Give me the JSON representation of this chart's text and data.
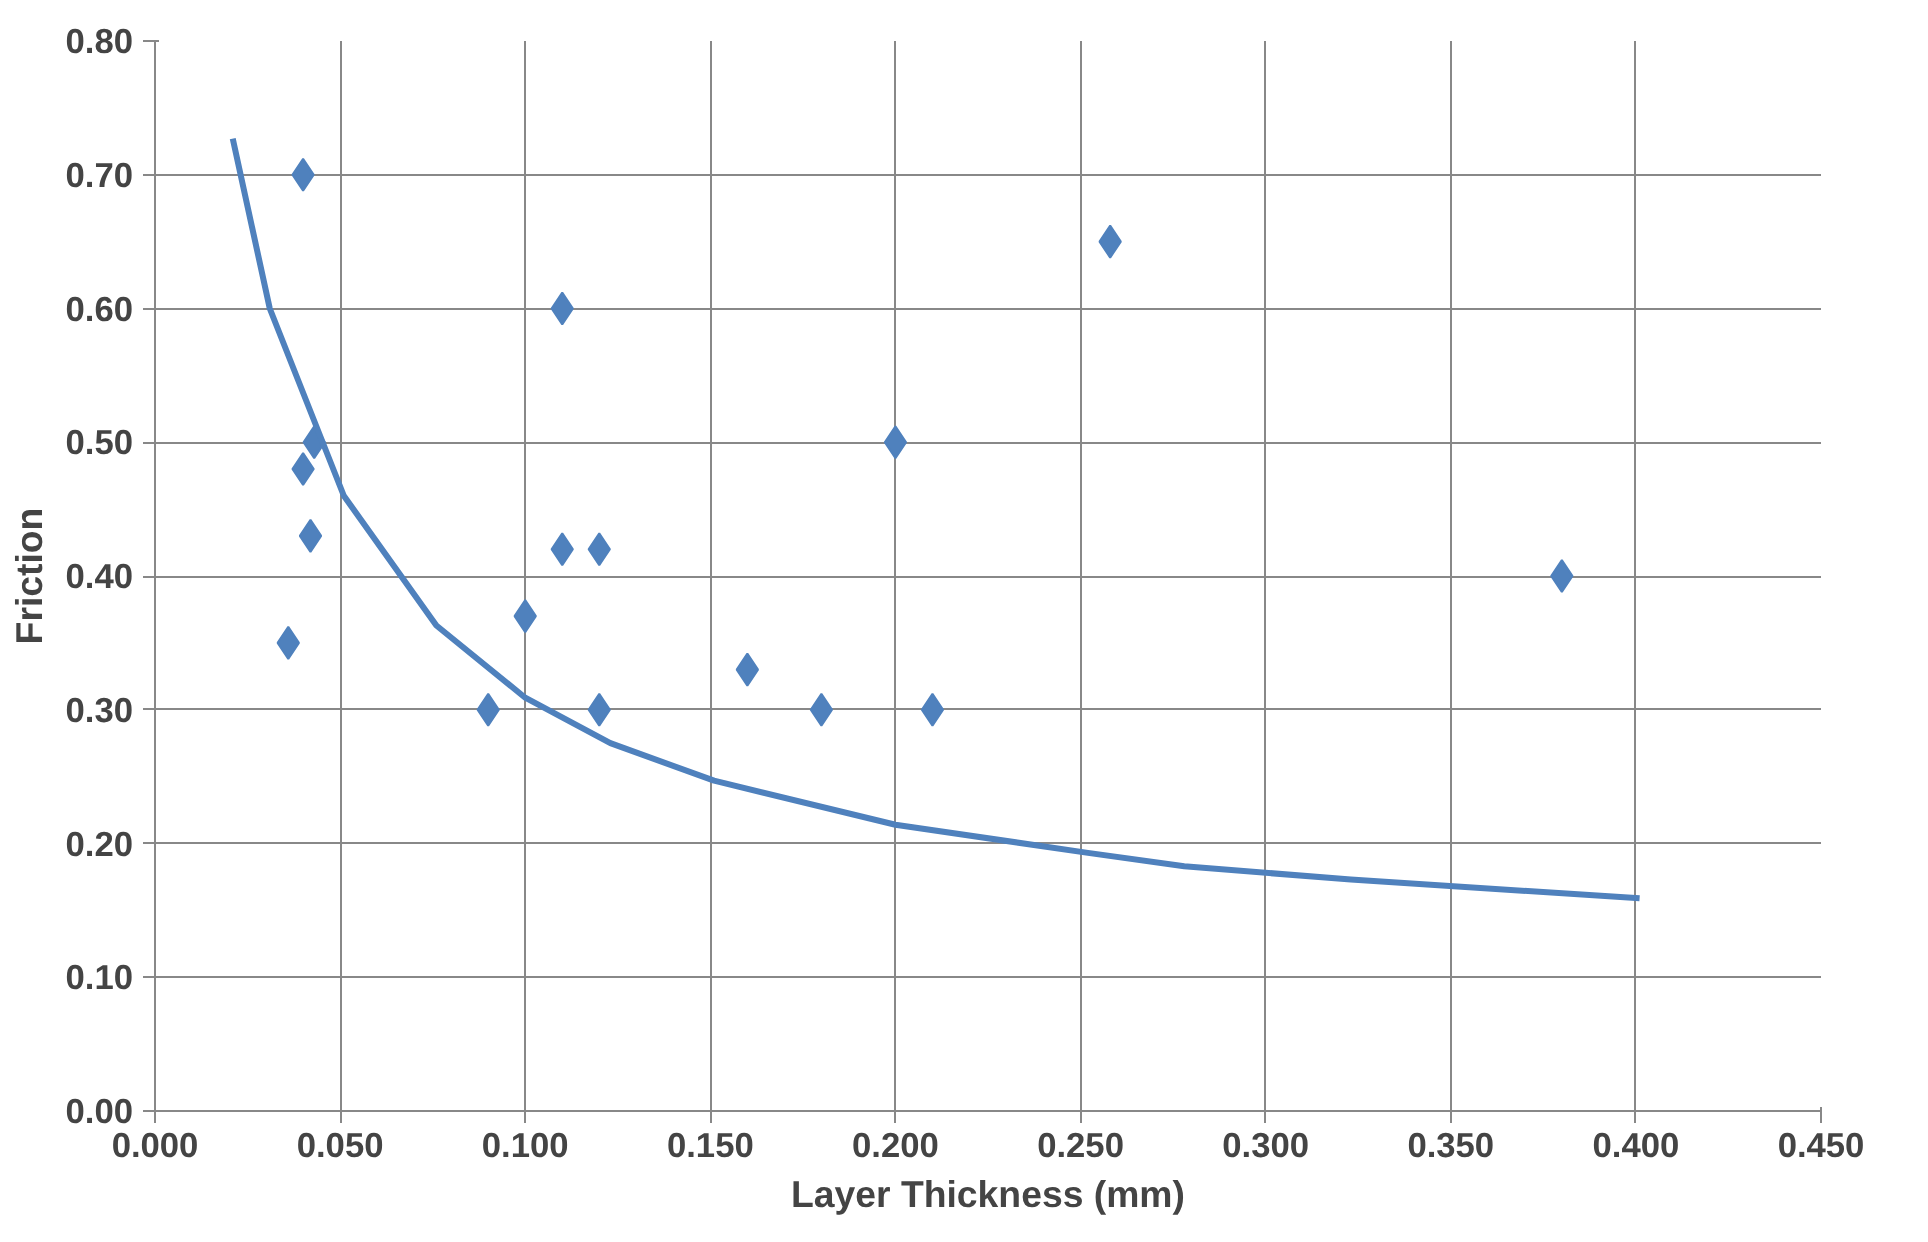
{
  "chart_data": {
    "type": "scatter",
    "xlabel": "Layer Thickness (mm)",
    "ylabel": "Friction",
    "xlim": [
      0,
      0.45
    ],
    "ylim": [
      0,
      0.8
    ],
    "xticks": [
      {
        "value": 0,
        "label": "0.000"
      },
      {
        "value": 0.05,
        "label": "0.050"
      },
      {
        "value": 0.1,
        "label": "0.100"
      },
      {
        "value": 0.15,
        "label": "0.150"
      },
      {
        "value": 0.2,
        "label": "0.200"
      },
      {
        "value": 0.25,
        "label": "0.250"
      },
      {
        "value": 0.3,
        "label": "0.300"
      },
      {
        "value": 0.35,
        "label": "0.350"
      },
      {
        "value": 0.4,
        "label": "0.400"
      },
      {
        "value": 0.45,
        "label": "0.450"
      }
    ],
    "yticks": [
      {
        "value": 0,
        "label": "0.00"
      },
      {
        "value": 0.1,
        "label": "0.10"
      },
      {
        "value": 0.2,
        "label": "0.20"
      },
      {
        "value": 0.3,
        "label": "0.30"
      },
      {
        "value": 0.4,
        "label": "0.40"
      },
      {
        "value": 0.5,
        "label": "0.50"
      },
      {
        "value": 0.6,
        "label": "0.60"
      },
      {
        "value": 0.7,
        "label": "0.70"
      },
      {
        "value": 0.8,
        "label": "0.80"
      }
    ],
    "grid": true,
    "series": [
      {
        "marker": "diamond",
        "color": "#4f81bd",
        "x": [
          0.04,
          0.11,
          0.258,
          0.043,
          0.2,
          0.04,
          0.042,
          0.11,
          0.12,
          0.38,
          0.036,
          0.1,
          0.16,
          0.09,
          0.12,
          0.18,
          0.21
        ],
        "values": [
          0.7,
          0.6,
          0.65,
          0.5,
          0.5,
          0.48,
          0.43,
          0.42,
          0.42,
          0.4,
          0.35,
          0.37,
          0.33,
          0.3,
          0.3,
          0.3,
          0.3
        ]
      },
      {
        "type": "line",
        "color": "#4f81bd",
        "x": [
          0.021,
          0.031,
          0.051,
          0.076,
          0.1,
          0.123,
          0.151,
          0.2,
          0.252,
          0.278,
          0.323,
          0.401
        ],
        "values": [
          0.727,
          0.6,
          0.46,
          0.363,
          0.309,
          0.275,
          0.247,
          0.214,
          0.193,
          0.183,
          0.173,
          0.159
        ]
      }
    ]
  }
}
